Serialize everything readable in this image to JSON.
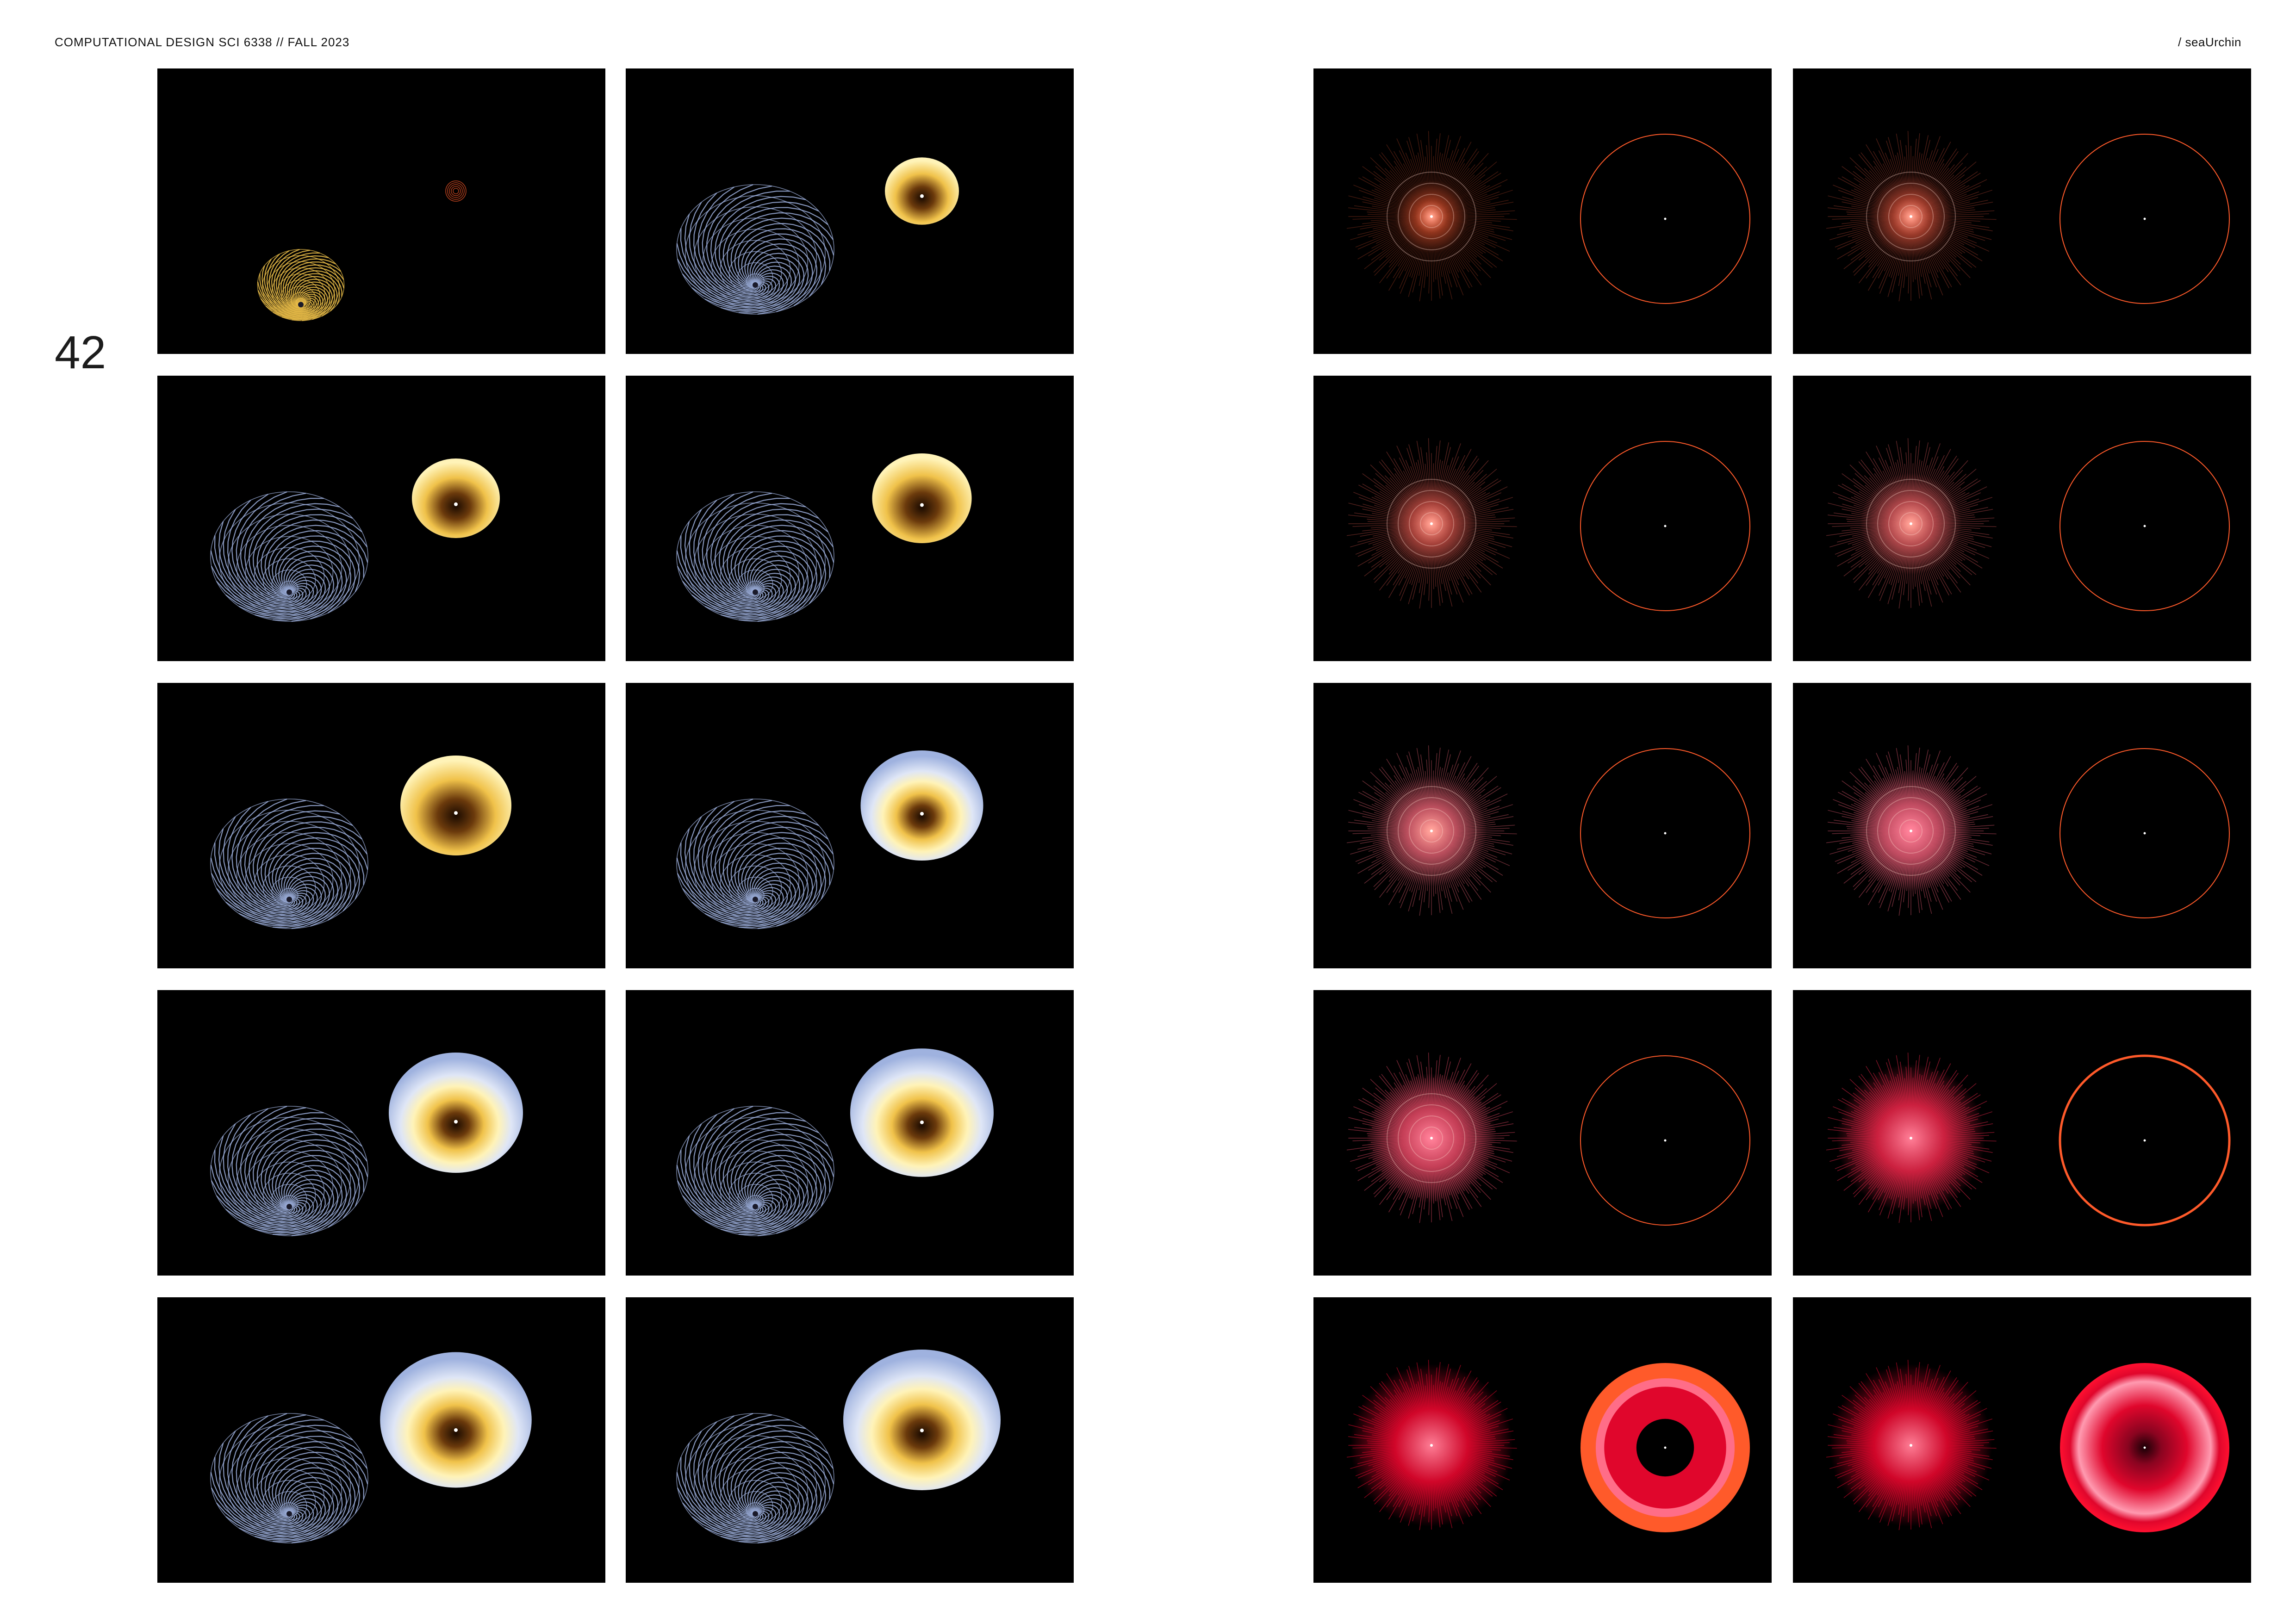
{
  "header": {
    "left_text": "COMPUTATIONAL DESIGN SCI 6338 // FALL 2023",
    "right_text": "/ seaUrchin"
  },
  "page_number": "42",
  "colors": {
    "background": "#ffffff",
    "frame_bg": "#000000",
    "vortex_blue": "#9fb2df",
    "bowl_gold": "#f0c24a",
    "bowl_brown": "#6b3a0c",
    "bowl_cream": "#fff3b8",
    "bowl_blue": "#9fb2df",
    "urchin_orange": "#ff5a2a",
    "urchin_pink": "#ff6d88",
    "urchin_red": "#e0062c"
  },
  "left_sequence": [
    {
      "vortex": false,
      "vortex_gold": true,
      "bowl_level": 0.0
    },
    {
      "vortex": true,
      "bowl_level": 0.28
    },
    {
      "vortex": true,
      "bowl_level": 0.4
    },
    {
      "vortex": true,
      "bowl_level": 0.5
    },
    {
      "vortex": true,
      "bowl_level": 0.6
    },
    {
      "vortex": true,
      "bowl_level": 0.7
    },
    {
      "vortex": true,
      "bowl_level": 0.8
    },
    {
      "vortex": true,
      "bowl_level": 0.88
    },
    {
      "vortex": true,
      "bowl_level": 0.95
    },
    {
      "vortex": true,
      "bowl_level": 1.0
    }
  ],
  "right_sequence": [
    {
      "stage": 0.05,
      "ring": "thin"
    },
    {
      "stage": 0.15,
      "ring": "thin"
    },
    {
      "stage": 0.25,
      "ring": "thin"
    },
    {
      "stage": 0.35,
      "ring": "thin"
    },
    {
      "stage": 0.45,
      "ring": "thin"
    },
    {
      "stage": 0.55,
      "ring": "thin"
    },
    {
      "stage": 0.65,
      "ring": "thin"
    },
    {
      "stage": 0.85,
      "ring": "medium"
    },
    {
      "stage": 1.0,
      "ring": "donut"
    },
    {
      "stage": 1.0,
      "ring": "red-donut"
    }
  ]
}
